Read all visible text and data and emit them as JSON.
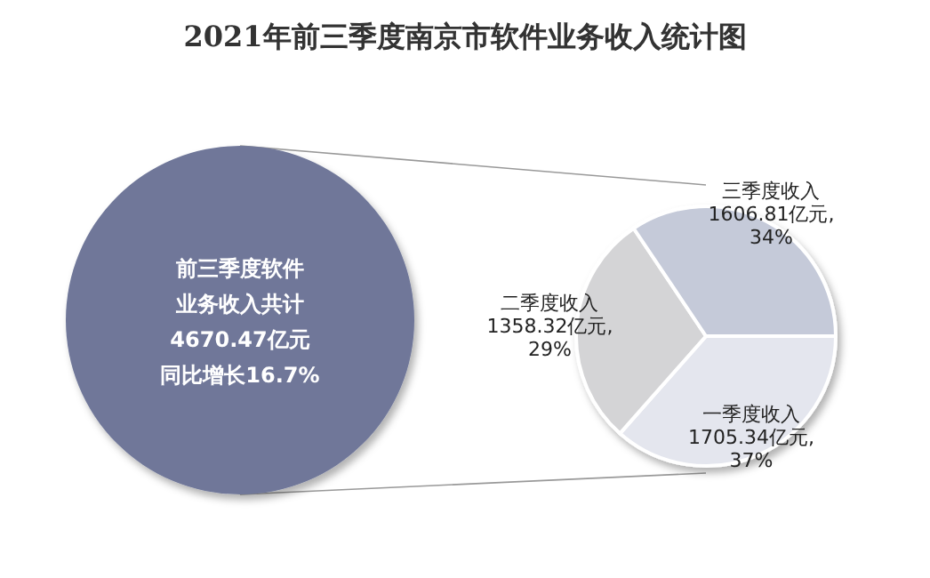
{
  "chart_data": {
    "type": "pie",
    "title": "2021年前三季度南京市软件业务收入统计图",
    "categories": [
      "一季度收入",
      "二季度收入",
      "三季度收入"
    ],
    "values": [
      1705.34,
      1358.32,
      1606.81
    ],
    "value_labels": [
      "1705.34亿元,\n37%",
      "1358.32亿元,\n29%",
      "1606.81亿元,\n34%"
    ],
    "colors": [
      "#e4e6ee",
      "#d4d4d6",
      "#c5cad9"
    ],
    "annotations": [
      "前三季度软件",
      "业务收入共计",
      "4670.47亿元",
      "同比增长16.7%"
    ],
    "legend": false
  }
}
